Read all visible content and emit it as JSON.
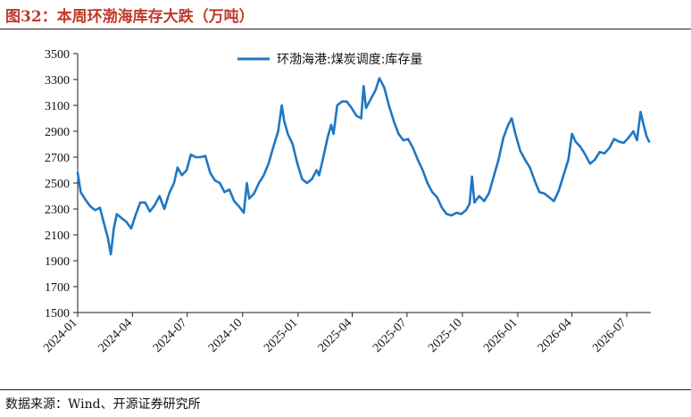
{
  "figure": {
    "title": "图32：本周环渤海库存大跌（万吨）",
    "source": "数据来源：Wind、开源证券研究所"
  },
  "colors": {
    "title": "#c0392b",
    "line": "#1f77c4",
    "axis": "#222222"
  },
  "chart_data": {
    "type": "line",
    "title": "图32：本周环渤海库存大跌（万吨）",
    "xlabel": "",
    "ylabel": "",
    "ylim": [
      1500,
      3500
    ],
    "yticks": [
      1500,
      1700,
      1900,
      2100,
      2300,
      2500,
      2700,
      2900,
      3100,
      3300,
      3500
    ],
    "xlim": [
      "2024-01-01",
      "2026-08-10"
    ],
    "xticks": [
      "2024-01",
      "2024-04",
      "2024-07",
      "2024-10",
      "2025-01",
      "2025-04",
      "2025-07",
      "2025-10",
      "2026-01",
      "2026-04",
      "2026-07"
    ],
    "grid": false,
    "legend": "top-center",
    "series": [
      {
        "name": "环渤海港:煤炭调度:库存量",
        "points": [
          [
            "2024-01-01",
            2580
          ],
          [
            "2024-01-06",
            2430
          ],
          [
            "2024-01-14",
            2370
          ],
          [
            "2024-01-22",
            2320
          ],
          [
            "2024-01-30",
            2290
          ],
          [
            "2024-02-07",
            2310
          ],
          [
            "2024-02-13",
            2200
          ],
          [
            "2024-02-20",
            2080
          ],
          [
            "2024-02-25",
            1950
          ],
          [
            "2024-03-01",
            2150
          ],
          [
            "2024-03-06",
            2260
          ],
          [
            "2024-03-14",
            2230
          ],
          [
            "2024-03-22",
            2200
          ],
          [
            "2024-03-30",
            2150
          ],
          [
            "2024-04-06",
            2250
          ],
          [
            "2024-04-14",
            2350
          ],
          [
            "2024-04-22",
            2350
          ],
          [
            "2024-04-30",
            2280
          ],
          [
            "2024-05-08",
            2330
          ],
          [
            "2024-05-16",
            2400
          ],
          [
            "2024-05-24",
            2300
          ],
          [
            "2024-06-01",
            2420
          ],
          [
            "2024-06-09",
            2500
          ],
          [
            "2024-06-15",
            2620
          ],
          [
            "2024-06-22",
            2560
          ],
          [
            "2024-06-30",
            2600
          ],
          [
            "2024-07-07",
            2720
          ],
          [
            "2024-07-15",
            2700
          ],
          [
            "2024-07-23",
            2700
          ],
          [
            "2024-07-31",
            2710
          ],
          [
            "2024-08-08",
            2580
          ],
          [
            "2024-08-16",
            2520
          ],
          [
            "2024-08-24",
            2500
          ],
          [
            "2024-09-01",
            2430
          ],
          [
            "2024-09-09",
            2450
          ],
          [
            "2024-09-17",
            2360
          ],
          [
            "2024-09-25",
            2320
          ],
          [
            "2024-10-03",
            2270
          ],
          [
            "2024-10-08",
            2500
          ],
          [
            "2024-10-12",
            2380
          ],
          [
            "2024-10-20",
            2420
          ],
          [
            "2024-10-28",
            2500
          ],
          [
            "2024-11-05",
            2560
          ],
          [
            "2024-11-13",
            2650
          ],
          [
            "2024-11-21",
            2780
          ],
          [
            "2024-11-29",
            2900
          ],
          [
            "2024-12-05",
            3100
          ],
          [
            "2024-12-09",
            2980
          ],
          [
            "2024-12-15",
            2880
          ],
          [
            "2024-12-23",
            2800
          ],
          [
            "2024-12-31",
            2650
          ],
          [
            "2025-01-08",
            2530
          ],
          [
            "2025-01-16",
            2500
          ],
          [
            "2025-01-24",
            2530
          ],
          [
            "2025-02-01",
            2600
          ],
          [
            "2025-02-05",
            2560
          ],
          [
            "2025-02-11",
            2680
          ],
          [
            "2025-02-19",
            2850
          ],
          [
            "2025-02-25",
            2950
          ],
          [
            "2025-03-01",
            2880
          ],
          [
            "2025-03-07",
            3100
          ],
          [
            "2025-03-15",
            3130
          ],
          [
            "2025-03-23",
            3130
          ],
          [
            "2025-03-31",
            3080
          ],
          [
            "2025-04-08",
            3020
          ],
          [
            "2025-04-16",
            3000
          ],
          [
            "2025-04-20",
            3250
          ],
          [
            "2025-04-24",
            3080
          ],
          [
            "2025-05-02",
            3150
          ],
          [
            "2025-05-10",
            3220
          ],
          [
            "2025-05-16",
            3310
          ],
          [
            "2025-05-24",
            3240
          ],
          [
            "2025-06-01",
            3100
          ],
          [
            "2025-06-09",
            2980
          ],
          [
            "2025-06-17",
            2880
          ],
          [
            "2025-06-25",
            2830
          ],
          [
            "2025-07-03",
            2840
          ],
          [
            "2025-07-11",
            2770
          ],
          [
            "2025-07-19",
            2680
          ],
          [
            "2025-07-27",
            2600
          ],
          [
            "2025-08-04",
            2500
          ],
          [
            "2025-08-12",
            2430
          ],
          [
            "2025-08-20",
            2390
          ],
          [
            "2025-08-28",
            2310
          ],
          [
            "2025-09-05",
            2260
          ],
          [
            "2025-09-13",
            2250
          ],
          [
            "2025-09-21",
            2270
          ],
          [
            "2025-09-29",
            2260
          ],
          [
            "2025-10-07",
            2290
          ],
          [
            "2025-10-13",
            2340
          ],
          [
            "2025-10-17",
            2550
          ],
          [
            "2025-10-21",
            2350
          ],
          [
            "2025-10-29",
            2400
          ],
          [
            "2025-11-06",
            2360
          ],
          [
            "2025-11-14",
            2420
          ],
          [
            "2025-11-22",
            2550
          ],
          [
            "2025-11-30",
            2680
          ],
          [
            "2025-12-08",
            2850
          ],
          [
            "2025-12-16",
            2950
          ],
          [
            "2025-12-22",
            3000
          ],
          [
            "2025-12-28",
            2880
          ],
          [
            "2026-01-05",
            2750
          ],
          [
            "2026-01-13",
            2680
          ],
          [
            "2026-01-21",
            2620
          ],
          [
            "2026-01-29",
            2520
          ],
          [
            "2026-02-06",
            2430
          ],
          [
            "2026-02-14",
            2420
          ],
          [
            "2026-02-22",
            2390
          ],
          [
            "2026-03-02",
            2360
          ],
          [
            "2026-03-10",
            2440
          ],
          [
            "2026-03-18",
            2560
          ],
          [
            "2026-03-26",
            2680
          ],
          [
            "2026-04-01",
            2880
          ],
          [
            "2026-04-07",
            2820
          ],
          [
            "2026-04-15",
            2780
          ],
          [
            "2026-04-23",
            2720
          ],
          [
            "2026-05-01",
            2650
          ],
          [
            "2026-05-09",
            2680
          ],
          [
            "2026-05-17",
            2740
          ],
          [
            "2026-05-25",
            2730
          ],
          [
            "2026-06-02",
            2770
          ],
          [
            "2026-06-10",
            2840
          ],
          [
            "2026-06-18",
            2820
          ],
          [
            "2026-06-26",
            2810
          ],
          [
            "2026-07-04",
            2850
          ],
          [
            "2026-07-12",
            2900
          ],
          [
            "2026-07-18",
            2830
          ],
          [
            "2026-07-24",
            3050
          ],
          [
            "2026-07-29",
            2950
          ],
          [
            "2026-08-03",
            2860
          ],
          [
            "2026-08-07",
            2820
          ]
        ]
      }
    ]
  }
}
